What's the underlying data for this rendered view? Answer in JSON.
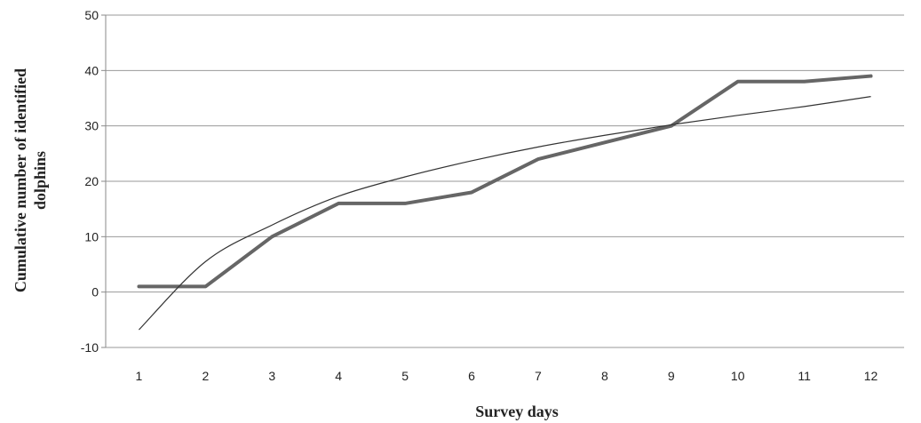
{
  "chart_data": {
    "type": "line",
    "xlabel": "Survey days",
    "ylabel_lines": [
      "Cumulative number of identified",
      "dolphins"
    ],
    "x": [
      1,
      2,
      3,
      4,
      5,
      6,
      7,
      8,
      9,
      10,
      11,
      12
    ],
    "ylim": [
      -10,
      50
    ],
    "yticks": [
      -10,
      0,
      10,
      20,
      30,
      40,
      50
    ],
    "grid": true,
    "legend": "none",
    "series": [
      {
        "values": [
          1,
          1,
          10,
          16,
          16,
          18,
          24,
          27,
          30,
          38,
          38,
          39
        ],
        "color": "#666666",
        "style": "thick"
      },
      {
        "trend": "logarithmic",
        "values": [
          -6.8,
          5.5,
          12.1,
          17.3,
          20.8,
          23.7,
          26.2,
          28.3,
          30.2,
          31.9,
          33.5,
          35.3
        ],
        "color": "#333333",
        "style": "thin"
      }
    ]
  }
}
